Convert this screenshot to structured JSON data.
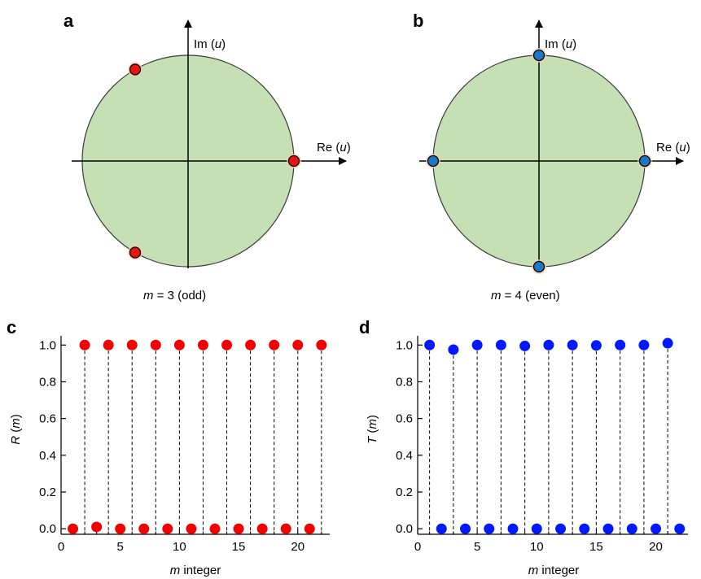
{
  "panels": {
    "a": {
      "letter": "a",
      "re_label_prefix": "Re (",
      "re_label_var": "u",
      "re_label_suffix": ")",
      "im_label_prefix": "Im (",
      "im_label_var": "u",
      "im_label_suffix": ")",
      "caption_var": "m",
      "caption_rest": " = 3 (odd)",
      "m": 3,
      "point_color": "#e8140f"
    },
    "b": {
      "letter": "b",
      "re_label_prefix": "Re (",
      "re_label_var": "u",
      "re_label_suffix": ")",
      "im_label_prefix": "Im (",
      "im_label_var": "u",
      "im_label_suffix": ")",
      "caption_var": "m",
      "caption_rest": " = 4 (even)",
      "m": 4,
      "point_color": "#1f77c4"
    },
    "c": {
      "letter": "c",
      "ylabel_var": "R",
      "ylabel_paren_open": " (",
      "ylabel_arg": "m",
      "ylabel_paren_close": ")",
      "xlabel_var": "m",
      "xlabel_rest": " integer"
    },
    "d": {
      "letter": "d",
      "ylabel_var": "T",
      "ylabel_paren_open": " (",
      "ylabel_arg": "m",
      "ylabel_paren_close": ")",
      "xlabel_var": "m",
      "xlabel_rest": " integer"
    }
  },
  "colors": {
    "disk_fill": "#c5e0b4",
    "red": "#f20000",
    "blue": "#0019ff",
    "halo": "#f6c9a8"
  },
  "chart_data": [
    {
      "type": "scatter",
      "panel": "c",
      "series": [
        {
          "x": [
            1,
            2,
            3,
            4,
            5,
            6,
            7,
            8,
            9,
            10,
            11,
            12,
            13,
            14,
            15,
            16,
            17,
            18,
            19,
            20,
            21,
            22
          ],
          "values": [
            0.0,
            1.0,
            0.01,
            1.0,
            0.0,
            1.0,
            0.0,
            1.0,
            0.0,
            1.0,
            0.0,
            1.0,
            0.0,
            1.0,
            0.0,
            1.0,
            0.0,
            1.0,
            0.0,
            1.0,
            0.0,
            1.0
          ]
        }
      ],
      "xlim": [
        0,
        22.7
      ],
      "ylim": [
        -0.03,
        1.05
      ],
      "xticks": [
        0,
        5,
        10,
        15,
        20
      ],
      "yticks": [
        0.0,
        0.2,
        0.4,
        0.6,
        0.8,
        1.0
      ],
      "xticklabels": [
        "0",
        "5",
        "10",
        "15",
        "20"
      ],
      "yticklabels": [
        "0.0",
        "0.2",
        "0.4",
        "0.6",
        "0.8",
        "1.0"
      ],
      "dashed_drops_at_x": [
        2,
        4,
        6,
        8,
        10,
        12,
        14,
        16,
        18,
        20,
        22
      ]
    },
    {
      "type": "scatter",
      "panel": "d",
      "series": [
        {
          "x": [
            1,
            2,
            3,
            4,
            5,
            6,
            7,
            8,
            9,
            10,
            11,
            12,
            13,
            14,
            15,
            16,
            17,
            18,
            19,
            20,
            21,
            22
          ],
          "values": [
            1.0,
            0.0,
            0.975,
            0.0,
            1.0,
            0.0,
            1.0,
            0.0,
            0.995,
            0.0,
            1.0,
            0.0,
            1.0,
            0.0,
            0.998,
            0.0,
            1.0,
            0.0,
            1.0,
            0.0,
            1.01,
            0.0
          ]
        }
      ],
      "xlim": [
        0,
        22.7
      ],
      "ylim": [
        -0.03,
        1.05
      ],
      "xticks": [
        0,
        5,
        10,
        15,
        20
      ],
      "yticks": [
        0.0,
        0.2,
        0.4,
        0.6,
        0.8,
        1.0
      ],
      "xticklabels": [
        "0",
        "5",
        "10",
        "15",
        "20"
      ],
      "yticklabels": [
        "0.0",
        "0.2",
        "0.4",
        "0.6",
        "0.8",
        "1.0"
      ],
      "dashed_drops_at_x": [
        1,
        3,
        5,
        7,
        9,
        11,
        13,
        15,
        17,
        19,
        21
      ]
    }
  ]
}
